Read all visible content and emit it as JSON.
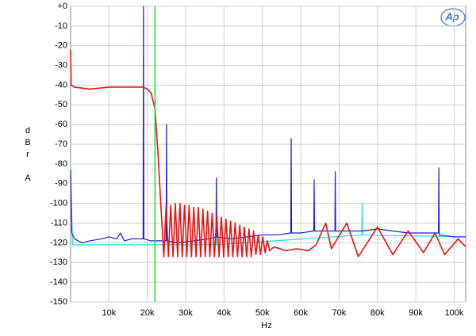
{
  "chart_data": {
    "type": "line",
    "xlabel": "Hz",
    "ylabel": [
      "dBr",
      "A"
    ],
    "logo": "Ap",
    "xlim": [
      0,
      103000
    ],
    "ylim": [
      -150,
      0
    ],
    "xticks": [
      {
        "value": 10000,
        "label": "10k"
      },
      {
        "value": 20000,
        "label": "20k"
      },
      {
        "value": 30000,
        "label": "30k"
      },
      {
        "value": 40000,
        "label": "40k"
      },
      {
        "value": 50000,
        "label": "50k"
      },
      {
        "value": 60000,
        "label": "60k"
      },
      {
        "value": 70000,
        "label": "70k"
      },
      {
        "value": 80000,
        "label": "80k"
      },
      {
        "value": 90000,
        "label": "90k"
      },
      {
        "value": 100000,
        "label": "100k"
      }
    ],
    "yticks": [
      {
        "value": 0,
        "label": "+0"
      },
      -10,
      -20,
      -30,
      -40,
      -50,
      -60,
      -70,
      -80,
      -90,
      -100,
      -110,
      -120,
      -130,
      -140,
      -150
    ],
    "grid": true,
    "vline": {
      "x": 22000,
      "color": "#22dd22"
    },
    "series": [
      {
        "color": "#22dddd",
        "x": [
          0,
          500,
          37900,
          38000,
          38100,
          75900,
          76000,
          76100,
          103000
        ],
        "values": [
          -82,
          -121,
          -121,
          -88,
          -121,
          -116,
          -100,
          -116,
          -117
        ]
      },
      {
        "color": "#1a1adf",
        "x": [
          0,
          300,
          1000,
          3000,
          5000,
          8000,
          10000,
          12000,
          13000,
          14000,
          16000,
          18900,
          19000,
          19100,
          21000,
          22000,
          24900,
          25000,
          25100,
          28000,
          32000,
          36000,
          37900,
          38000,
          38100,
          42000,
          46000,
          50000,
          54000,
          57400,
          57500,
          57600,
          60000,
          63400,
          63500,
          63600,
          66000,
          68900,
          69000,
          69100,
          72000,
          76000,
          80000,
          84000,
          88000,
          92000,
          95900,
          96000,
          96100,
          100000,
          103000
        ],
        "values": [
          -83,
          -115,
          -118,
          -120,
          -119,
          -118,
          -117,
          -118,
          -115,
          -119,
          -118,
          -118,
          0,
          -118,
          -119,
          -119,
          -119,
          -60,
          -119,
          -120,
          -119,
          -118,
          -117,
          -87,
          -117,
          -118,
          -117,
          -116,
          -116,
          -115,
          -67,
          -115,
          -115,
          -114,
          -88,
          -114,
          -114,
          -114,
          -84,
          -114,
          -114,
          -114,
          -113,
          -114,
          -115,
          -115,
          -115,
          -82,
          -116,
          -117,
          -117
        ]
      },
      {
        "color": "#e81414",
        "x": [
          0,
          150,
          1000,
          5000,
          10000,
          15000,
          19000,
          20000,
          21000,
          22000,
          22800,
          23500,
          24300,
          24900,
          25500,
          26100,
          26700,
          27300,
          27900,
          28500,
          29100,
          29700,
          30300,
          30900,
          31500,
          32100,
          32700,
          33300,
          33900,
          34500,
          35100,
          35700,
          36300,
          36900,
          37500,
          38100,
          38700,
          39300,
          39900,
          40500,
          41100,
          41700,
          42300,
          42900,
          43500,
          44100,
          44700,
          45300,
          45900,
          46500,
          47100,
          47700,
          48300,
          48900,
          49500,
          50100,
          50700,
          51300,
          51900,
          53000,
          56000,
          59000,
          62000,
          64000,
          66500,
          68000,
          69500,
          72000,
          75000,
          80000,
          84000,
          88000,
          92000,
          95000,
          97500,
          101000,
          103000
        ],
        "values": [
          -22,
          -40,
          -41,
          -42,
          -41,
          -41,
          -41,
          -42,
          -44,
          -52,
          -75,
          -100,
          -127,
          -101,
          -127,
          -101,
          -127,
          -100,
          -127,
          -100,
          -127,
          -101,
          -127,
          -101,
          -127,
          -102,
          -127,
          -102,
          -127,
          -103,
          -127,
          -104,
          -127,
          -105,
          -127,
          -106,
          -127,
          -107,
          -127,
          -108,
          -127,
          -109,
          -127,
          -110,
          -127,
          -111,
          -127,
          -112,
          -127,
          -113,
          -127,
          -114,
          -126,
          -116,
          -126,
          -117,
          -125,
          -119,
          -124,
          -122,
          -124,
          -123,
          -124,
          -121,
          -110,
          -123,
          -118,
          -110,
          -127,
          -112,
          -126,
          -114,
          -125,
          -115,
          -126,
          -118,
          -122
        ]
      }
    ]
  }
}
